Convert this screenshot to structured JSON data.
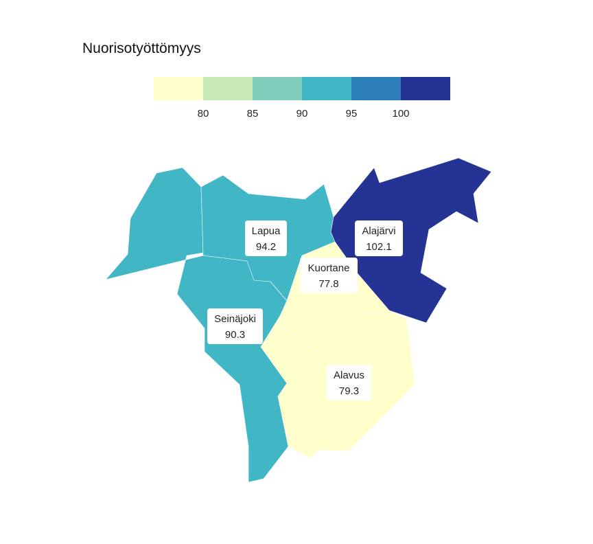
{
  "title": "Nuorisotyöttömyys",
  "legend": {
    "colors": [
      "#ffffcc",
      "#c7e9b4",
      "#7fcdbb",
      "#41b6c4",
      "#2c7fb8",
      "#253494"
    ],
    "ticks": [
      "80",
      "85",
      "90",
      "95",
      "100"
    ]
  },
  "regions": [
    {
      "name": "Lapua",
      "value": "94.2",
      "color": "#41b6c4"
    },
    {
      "name": "Alajärvi",
      "value": "102.1",
      "color": "#253494"
    },
    {
      "name": "Kuortane",
      "value": "77.8",
      "color": "#ffffcc"
    },
    {
      "name": "Seinäjoki",
      "value": "90.3",
      "color": "#41b6c4"
    },
    {
      "name": "Alavus",
      "value": "79.3",
      "color": "#ffffcc"
    }
  ]
}
